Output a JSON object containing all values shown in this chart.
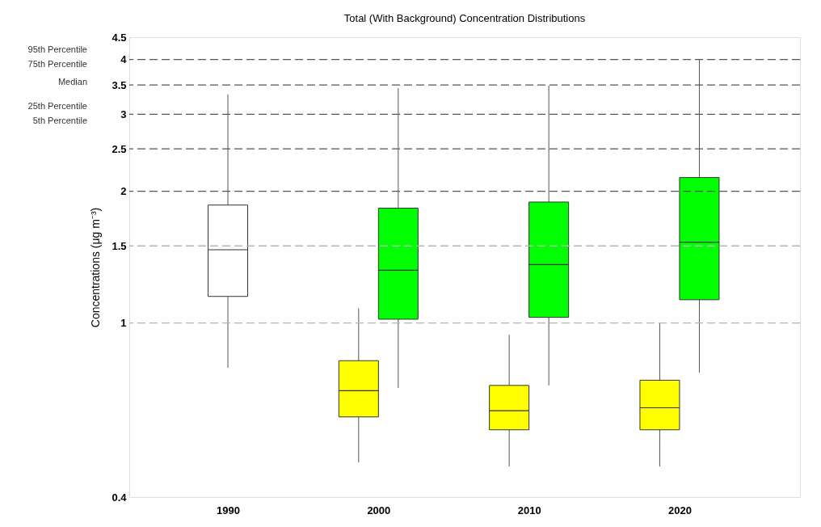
{
  "chart_data": {
    "type": "box",
    "title": "Total (With Background) Concentration Distributions",
    "ylabel": "Concentrations (μg m⁻³)",
    "categories": [
      "1990",
      "2000",
      "2010",
      "2020"
    ],
    "series": [
      {
        "color": "#ffffff",
        "boxes": [
          {
            "low": 0.79,
            "q1": 1.15,
            "median": 1.47,
            "q3": 1.86,
            "high": 3.33
          },
          null,
          null,
          null
        ]
      },
      {
        "color": "#ffff00",
        "boxes": [
          null,
          {
            "low": 0.48,
            "q1": 0.61,
            "median": 0.7,
            "q3": 0.82,
            "high": 1.08
          },
          {
            "low": 0.47,
            "q1": 0.57,
            "median": 0.63,
            "q3": 0.72,
            "high": 0.94
          },
          {
            "low": 0.47,
            "q1": 0.57,
            "median": 0.64,
            "q3": 0.74,
            "high": 1.0
          }
        ]
      },
      {
        "color": "#00ff00",
        "boxes": [
          null,
          {
            "low": 0.71,
            "q1": 1.02,
            "median": 1.32,
            "q3": 1.83,
            "high": 3.44
          },
          {
            "low": 0.72,
            "q1": 1.03,
            "median": 1.36,
            "q3": 1.89,
            "high": 3.49
          },
          {
            "low": 0.77,
            "q1": 1.13,
            "median": 1.53,
            "q3": 2.15,
            "high": 4.0
          }
        ]
      }
    ],
    "log": true,
    "ylim": [
      0.4,
      4.5
    ],
    "yticks": [
      0.4,
      1,
      1.5,
      2,
      2.5,
      3,
      3.5,
      4,
      4.5
    ],
    "grid": false,
    "ref_lines": [
      {
        "axis": "y",
        "value": 1,
        "color": "#b4b4b4",
        "line_style": "dashed"
      },
      {
        "axis": "y",
        "value": 1.5,
        "color": "#b4b4b4",
        "line_style": "dashed"
      },
      {
        "axis": "y",
        "value": 2,
        "color": "#555555",
        "line_style": "dashed"
      },
      {
        "axis": "y",
        "value": 2.5,
        "color": "#555555",
        "line_style": "dashed"
      },
      {
        "axis": "y",
        "value": 3,
        "color": "#555555",
        "line_style": "dashed"
      },
      {
        "axis": "y",
        "value": 3.5,
        "color": "#555555",
        "line_style": "dashed"
      },
      {
        "axis": "y",
        "value": 4,
        "color": "#555555",
        "line_style": "dashed"
      }
    ],
    "annotations": [
      "95th Percentile",
      "75th Percentile",
      "Median",
      "25th Percentile",
      "5th Percentile"
    ]
  }
}
